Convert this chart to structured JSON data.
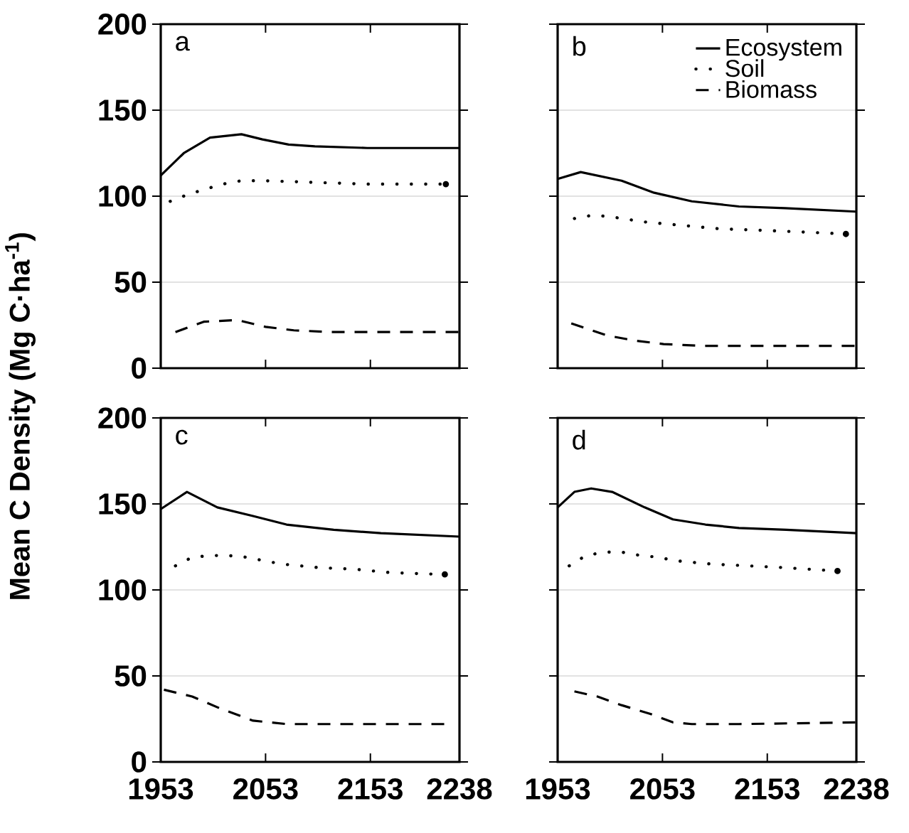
{
  "chart_data": [
    {
      "type": "line",
      "ylabel": "Mean C Density (Mg C·ha$^{-1}$)",
      "annotations": [
        "a"
      ],
      "xlim": [
        1953,
        2238
      ],
      "ylim": [
        0,
        200
      ],
      "xticks": [
        1953,
        2053,
        2153,
        2238
      ],
      "yticks": [
        0,
        50,
        100,
        150,
        200
      ],
      "grid": "y",
      "tick_labels": "y",
      "series": [
        {
          "color": "#000000",
          "line_style": "solid",
          "x": [
            1953,
            1975,
            2000,
            2030,
            2050,
            2075,
            2100,
            2150,
            2238
          ],
          "values": [
            112,
            125,
            134,
            136,
            133,
            130,
            129,
            128,
            128
          ]
        },
        {
          "color": "#000000",
          "line_style": "dotted",
          "x": [
            1962,
            1979,
            1995,
            2012,
            2030,
            2050,
            2100,
            2150,
            2225
          ],
          "values": [
            97,
            101,
            104,
            107,
            109,
            109,
            108,
            107,
            107
          ]
        },
        {
          "color": "#000000",
          "line_style": "dashed",
          "x": [
            1967,
            1994,
            2026,
            2053,
            2080,
            2116,
            2238
          ],
          "values": [
            21,
            27,
            28,
            24,
            22,
            21,
            21
          ]
        }
      ]
    },
    {
      "type": "line",
      "annotations": [
        "b"
      ],
      "xlim": [
        1953,
        2238
      ],
      "ylim": [
        0,
        200
      ],
      "xticks": [
        1953,
        2053,
        2153,
        2238
      ],
      "yticks": [
        0,
        50,
        100,
        150,
        200
      ],
      "grid": "y",
      "tick_labels": false,
      "legend": "top right",
      "series": [
        {
          "name": "Ecosystem",
          "color": "#000000",
          "line_style": "solid",
          "x": [
            1953,
            1975,
            2014,
            2045,
            2081,
            2126,
            2170,
            2238
          ],
          "values": [
            110,
            114,
            109,
            102,
            97,
            94,
            93,
            91
          ]
        },
        {
          "name": "Soil",
          "color": "#000000",
          "line_style": "dotted",
          "x": [
            1969,
            1987,
            2004,
            2036,
            2072,
            2108,
            2153,
            2193,
            2228
          ],
          "values": [
            87,
            89,
            88,
            85,
            83,
            81,
            80,
            79,
            78
          ]
        },
        {
          "name": "Biomass",
          "color": "#000000",
          "line_style": "dashed",
          "x": [
            1966,
            2000,
            2027,
            2054,
            2090,
            2238
          ],
          "values": [
            26,
            19,
            16,
            14,
            13,
            13
          ]
        }
      ]
    },
    {
      "type": "line",
      "annotations": [
        "c"
      ],
      "xlim": [
        1953,
        2238
      ],
      "ylim": [
        0,
        200
      ],
      "xticks": [
        1953,
        2053,
        2153,
        2238
      ],
      "yticks": [
        0,
        50,
        100,
        150,
        200
      ],
      "grid": "y",
      "series": [
        {
          "color": "#000000",
          "line_style": "solid",
          "x": [
            1953,
            1978,
            2007,
            2041,
            2073,
            2118,
            2163,
            2238
          ],
          "values": [
            147,
            157,
            148,
            143,
            138,
            135,
            133,
            131
          ]
        },
        {
          "color": "#000000",
          "line_style": "dotted",
          "x": [
            1967,
            1983,
            2001,
            2017,
            2035,
            2051,
            2069,
            2103,
            2139,
            2173,
            2224
          ],
          "values": [
            114,
            119,
            120,
            120,
            119,
            117,
            115,
            113,
            112,
            110,
            109
          ]
        },
        {
          "color": "#000000",
          "line_style": "dashed",
          "x": [
            1956,
            1983,
            2010,
            2041,
            2073,
            2118,
            2224
          ],
          "values": [
            42,
            38,
            31,
            24,
            22,
            22,
            22
          ]
        }
      ]
    },
    {
      "type": "line",
      "annotations": [
        "d"
      ],
      "xlim": [
        1953,
        2238
      ],
      "ylim": [
        0,
        200
      ],
      "xticks": [
        1953,
        2053,
        2153,
        2238
      ],
      "yticks": [
        0,
        50,
        100,
        150,
        200
      ],
      "grid": "y",
      "tick_labels": "x",
      "series": [
        {
          "color": "#000000",
          "line_style": "solid",
          "x": [
            1953,
            1969,
            1985,
            2005,
            2036,
            2063,
            2094,
            2126,
            2171,
            2238
          ],
          "values": [
            148,
            157,
            159,
            157,
            148,
            141,
            138,
            136,
            135,
            133
          ]
        },
        {
          "color": "#000000",
          "line_style": "dotted",
          "x": [
            1964,
            1980,
            1998,
            2014,
            2032,
            2049,
            2065,
            2100,
            2135,
            2168,
            2220
          ],
          "values": [
            114,
            120,
            122,
            122,
            120,
            119,
            117,
            115,
            114,
            113,
            111
          ]
        },
        {
          "color": "#000000",
          "line_style": "dashed",
          "x": [
            1969,
            1991,
            2014,
            2041,
            2063,
            2081,
            2126,
            2238
          ],
          "values": [
            41,
            38,
            33,
            28,
            23,
            22,
            22,
            23
          ]
        }
      ]
    }
  ]
}
